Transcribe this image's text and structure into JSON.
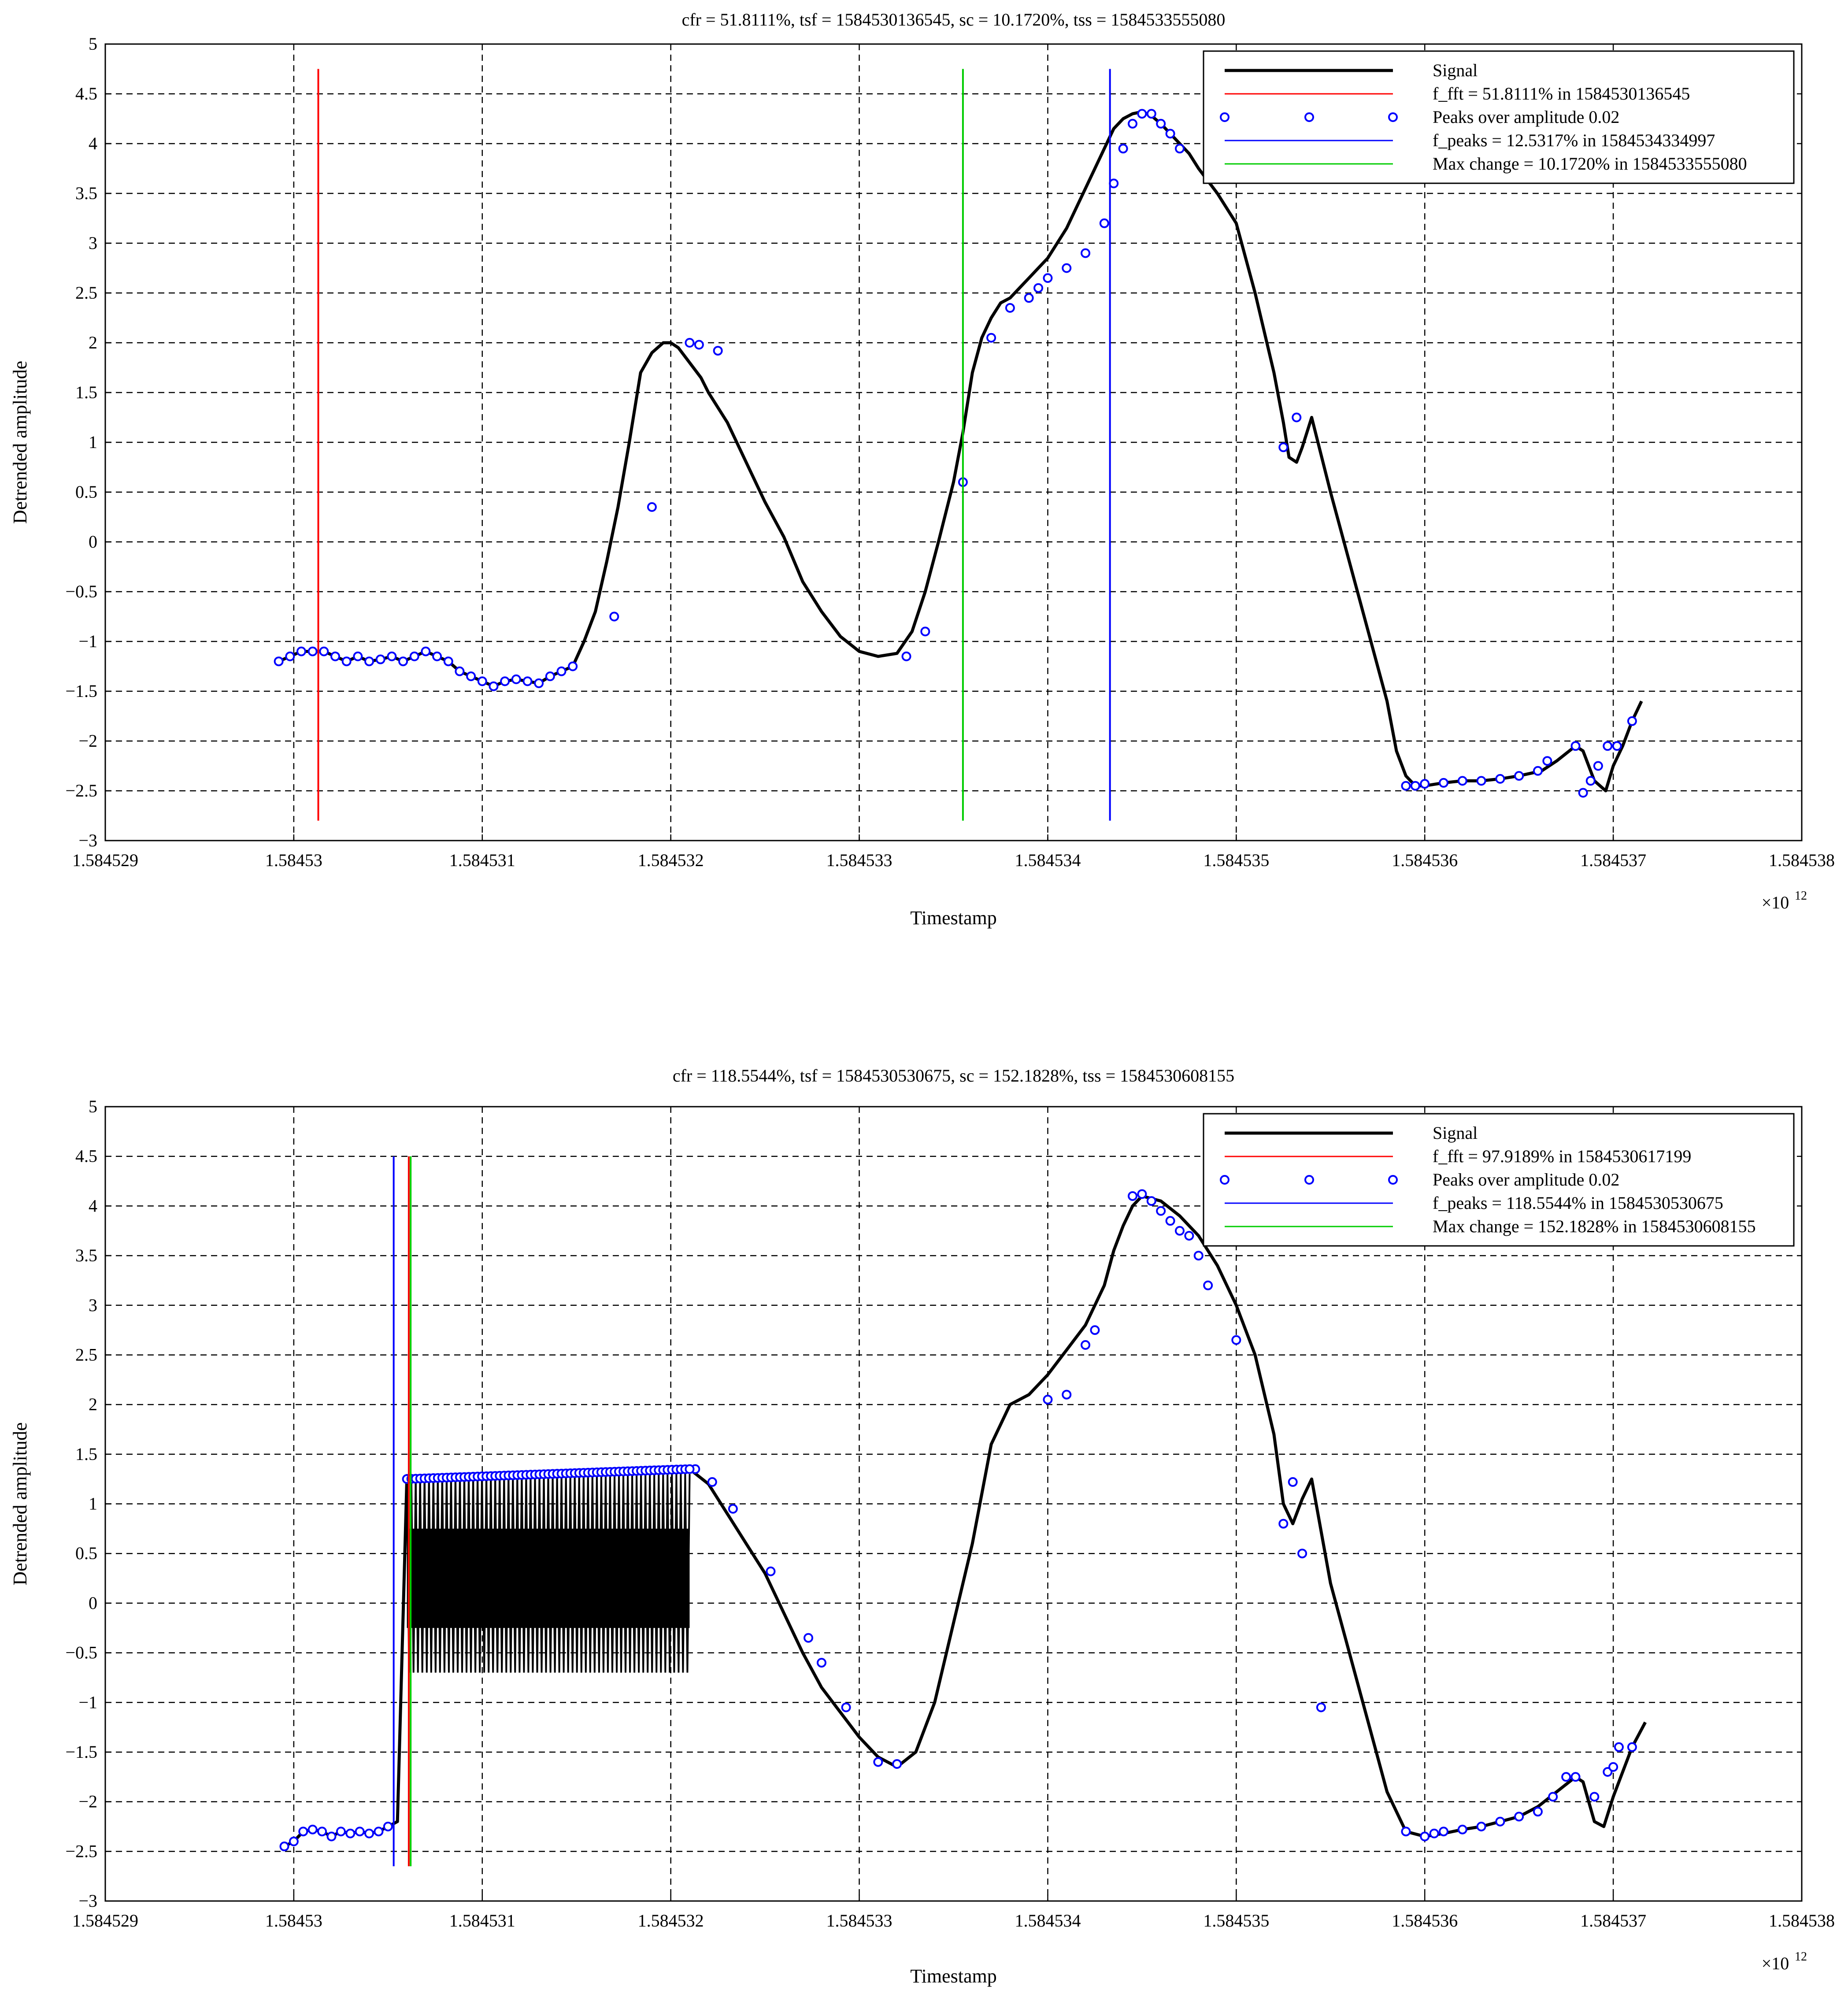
{
  "chart_data": [
    {
      "type": "line",
      "title": "cfr = 51.8111%, tsf = 1584530136545, sc = 10.1720%, tss = 1584533555080",
      "xlabel": "Timestamp",
      "ylabel": "Detrended amplitude",
      "x_multiplier": "×10",
      "x_multiplier_exp": "12",
      "xlim": [
        1.584529,
        1.584538
      ],
      "ylim": [
        -3,
        5
      ],
      "xticks": [
        "1.584529",
        "1.58453",
        "1.584531",
        "1.584532",
        "1.584533",
        "1.584534",
        "1.584535",
        "1.584536",
        "1.584537",
        "1.584538"
      ],
      "yticks": [
        "−3",
        "−2.5",
        "−2",
        "−1.5",
        "−1",
        "−0.5",
        "0",
        "0.5",
        "1",
        "1.5",
        "2",
        "2.5",
        "3",
        "3.5",
        "4",
        "4.5",
        "5"
      ],
      "grid": true,
      "legend_position": "top-right",
      "legend": [
        {
          "label": "Signal",
          "kind": "line",
          "color": "#000000"
        },
        {
          "label": "f_fft = 51.8111% in 1584530136545",
          "kind": "line",
          "color": "#ff0000"
        },
        {
          "label": "Peaks over amplitude 0.02",
          "kind": "marker",
          "color": "#0000ff"
        },
        {
          "label": "f_peaks = 12.5317% in 1584534334997",
          "kind": "line",
          "color": "#0000ff"
        },
        {
          "label": "Max change = 10.1720% in 1584533555080",
          "kind": "line",
          "color": "#00cc00"
        }
      ],
      "vlines": [
        {
          "x": 1.58453013,
          "y0": -2.8,
          "y1": 4.75,
          "color": "#ff0000"
        },
        {
          "x": 1.58453355,
          "y0": -2.8,
          "y1": 4.75,
          "color": "#00cc00"
        },
        {
          "x": 1.58453433,
          "y0": -2.8,
          "y1": 4.75,
          "color": "#0000ff"
        }
      ],
      "signal": {
        "x": [
          1.58452992,
          1.58452998,
          1.58453004,
          1.5845301,
          1.58453016,
          1.58453022,
          1.58453028,
          1.58453034,
          1.5845304,
          1.58453046,
          1.58453052,
          1.58453058,
          1.58453064,
          1.5845307,
          1.58453076,
          1.58453082,
          1.58453088,
          1.58453094,
          1.584531,
          1.58453106,
          1.58453112,
          1.58453118,
          1.58453124,
          1.5845313,
          1.58453136,
          1.58453142,
          1.58453148,
          1.58453154,
          1.5845316,
          1.58453166,
          1.58453172,
          1.58453178,
          1.58453184,
          1.5845319,
          1.58453196,
          1.584532,
          1.58453204,
          1.58453208,
          1.58453212,
          1.58453216,
          1.5845322,
          1.5845323,
          1.5845324,
          1.5845325,
          1.5845326,
          1.5845327,
          1.5845328,
          1.5845329,
          1.584533,
          1.5845331,
          1.5845332,
          1.58453328,
          1.58453335,
          1.58453342,
          1.5845335,
          1.58453355,
          1.5845336,
          1.58453365,
          1.5845337,
          1.58453375,
          1.5845338,
          1.58453385,
          1.5845339,
          1.58453395,
          1.584534,
          1.58453405,
          1.5845341,
          1.58453415,
          1.5845342,
          1.58453425,
          1.5845343,
          1.58453435,
          1.5845344,
          1.58453445,
          1.5845345,
          1.58453455,
          1.5845346,
          1.58453465,
          1.5845347,
          1.58453475,
          1.5845348,
          1.5845349,
          1.584535,
          1.5845351,
          1.5845352,
          1.58453525,
          1.58453528,
          1.58453532,
          1.58453535,
          1.5845354,
          1.5845355,
          1.5845356,
          1.5845357,
          1.5845358,
          1.58453585,
          1.5845359,
          1.58453595,
          1.584536,
          1.5845361,
          1.5845362,
          1.5845363,
          1.5845364,
          1.5845365,
          1.58453662,
          1.5845367,
          1.5845368,
          1.58453684,
          1.5845369,
          1.58453696,
          1.584537,
          1.58453705,
          1.5845371,
          1.58453715
        ],
        "y": [
          -1.2,
          -1.15,
          -1.1,
          -1.1,
          -1.1,
          -1.15,
          -1.2,
          -1.15,
          -1.2,
          -1.18,
          -1.15,
          -1.2,
          -1.15,
          -1.1,
          -1.15,
          -1.2,
          -1.3,
          -1.35,
          -1.4,
          -1.45,
          -1.4,
          -1.38,
          -1.4,
          -1.42,
          -1.35,
          -1.3,
          -1.25,
          -1.0,
          -0.7,
          -0.2,
          0.35,
          1.0,
          1.7,
          1.9,
          2.0,
          2.0,
          1.95,
          1.85,
          1.75,
          1.65,
          1.5,
          1.2,
          0.8,
          0.4,
          0.05,
          -0.4,
          -0.7,
          -0.95,
          -1.1,
          -1.15,
          -1.12,
          -0.9,
          -0.5,
          0.0,
          0.6,
          1.1,
          1.7,
          2.05,
          2.25,
          2.4,
          2.45,
          2.55,
          2.65,
          2.75,
          2.85,
          3.0,
          3.15,
          3.35,
          3.55,
          3.75,
          3.95,
          4.15,
          4.25,
          4.3,
          4.32,
          4.28,
          4.2,
          4.1,
          4.0,
          3.9,
          3.75,
          3.5,
          3.2,
          2.5,
          1.7,
          1.2,
          0.85,
          0.8,
          0.95,
          1.25,
          0.5,
          -0.2,
          -0.9,
          -1.6,
          -2.1,
          -2.35,
          -2.45,
          -2.45,
          -2.42,
          -2.4,
          -2.4,
          -2.38,
          -2.35,
          -2.3,
          -2.2,
          -2.05,
          -2.1,
          -2.4,
          -2.5,
          -2.25,
          -2.05,
          -1.8,
          -1.6
        ]
      },
      "peaks": {
        "x": [
          1.58452992,
          1.58452998,
          1.58453004,
          1.5845301,
          1.58453016,
          1.58453022,
          1.58453028,
          1.58453034,
          1.5845304,
          1.58453046,
          1.58453052,
          1.58453058,
          1.58453064,
          1.5845307,
          1.58453076,
          1.58453082,
          1.58453088,
          1.58453094,
          1.584531,
          1.58453106,
          1.58453112,
          1.58453118,
          1.58453124,
          1.5845313,
          1.58453136,
          1.58453142,
          1.58453148,
          1.5845317,
          1.5845319,
          1.5845321,
          1.58453215,
          1.58453225,
          1.58453325,
          1.58453335,
          1.58453355,
          1.5845337,
          1.5845338,
          1.5845339,
          1.58453395,
          1.584534,
          1.5845341,
          1.5845342,
          1.5845343,
          1.58453435,
          1.5845344,
          1.58453445,
          1.5845345,
          1.58453455,
          1.5845346,
          1.58453465,
          1.5845347,
          1.58453525,
          1.58453532,
          1.5845359,
          1.58453595,
          1.584536,
          1.5845361,
          1.5845362,
          1.5845363,
          1.5845364,
          1.5845365,
          1.5845366,
          1.58453665,
          1.5845368,
          1.58453684,
          1.58453688,
          1.58453692,
          1.58453697,
          1.58453702,
          1.5845371
        ],
        "y": [
          -1.2,
          -1.15,
          -1.1,
          -1.1,
          -1.1,
          -1.15,
          -1.2,
          -1.15,
          -1.2,
          -1.18,
          -1.15,
          -1.2,
          -1.15,
          -1.1,
          -1.15,
          -1.2,
          -1.3,
          -1.35,
          -1.4,
          -1.45,
          -1.4,
          -1.38,
          -1.4,
          -1.42,
          -1.35,
          -1.3,
          -1.25,
          -0.75,
          0.35,
          2.0,
          1.98,
          1.92,
          -1.15,
          -0.9,
          0.6,
          2.05,
          2.35,
          2.45,
          2.55,
          2.65,
          2.75,
          2.9,
          3.2,
          3.6,
          3.95,
          4.2,
          4.3,
          4.3,
          4.2,
          4.1,
          3.95,
          0.95,
          1.25,
          -2.45,
          -2.45,
          -2.43,
          -2.42,
          -2.4,
          -2.4,
          -2.38,
          -2.35,
          -2.3,
          -2.2,
          -2.05,
          -2.52,
          -2.4,
          -2.25,
          -2.05,
          -2.05,
          -1.8
        ]
      }
    },
    {
      "type": "line",
      "title": "cfr = 118.5544%, tsf = 1584530530675, sc = 152.1828%, tss = 1584530608155",
      "xlabel": "Timestamp",
      "ylabel": "Detrended amplitude",
      "x_multiplier": "×10",
      "x_multiplier_exp": "12",
      "xlim": [
        1.584529,
        1.584538
      ],
      "ylim": [
        -3,
        5
      ],
      "xticks": [
        "1.584529",
        "1.58453",
        "1.584531",
        "1.584532",
        "1.584533",
        "1.584534",
        "1.584535",
        "1.584536",
        "1.584537",
        "1.584538"
      ],
      "yticks": [
        "−3",
        "−2.5",
        "−2",
        "−1.5",
        "−1",
        "−0.5",
        "0",
        "0.5",
        "1",
        "1.5",
        "2",
        "2.5",
        "3",
        "3.5",
        "4",
        "4.5",
        "5"
      ],
      "grid": true,
      "legend_position": "top-right",
      "legend": [
        {
          "label": "Signal",
          "kind": "line",
          "color": "#000000"
        },
        {
          "label": "f_fft = 97.9189% in 1584530617199",
          "kind": "line",
          "color": "#ff0000"
        },
        {
          "label": "Peaks over amplitude 0.02",
          "kind": "marker",
          "color": "#0000ff"
        },
        {
          "label": "f_peaks = 118.5544% in 1584530530675",
          "kind": "line",
          "color": "#0000ff"
        },
        {
          "label": "Max change = 152.1828% in 1584530608155",
          "kind": "line",
          "color": "#00cc00"
        }
      ],
      "vlines": [
        {
          "x": 1.58453053,
          "y0": -2.65,
          "y1": 4.5,
          "color": "#0000ff"
        },
        {
          "x": 1.58453061,
          "y0": -2.65,
          "y1": 4.5,
          "color": "#ff0000"
        },
        {
          "x": 1.58453062,
          "y0": -2.65,
          "y1": 4.5,
          "color": "#00cc00"
        }
      ],
      "band": {
        "x0": 1.5845306,
        "x1": 1.5845321,
        "count": 64,
        "y_high": 1.3,
        "y_low": -0.7
      },
      "signal": {
        "x": [
          1.58452995,
          1.58453,
          1.58453005,
          1.5845301,
          1.58453015,
          1.5845302,
          1.58453025,
          1.5845303,
          1.58453035,
          1.5845304,
          1.58453045,
          1.5845305,
          1.58453055,
          1.5845306,
          1.5845321,
          1.5845322,
          1.5845323,
          1.5845324,
          1.5845325,
          1.5845326,
          1.5845327,
          1.5845328,
          1.5845329,
          1.584533,
          1.5845331,
          1.5845332,
          1.5845333,
          1.5845334,
          1.5845335,
          1.5845336,
          1.5845337,
          1.5845338,
          1.5845339,
          1.584534,
          1.5845341,
          1.5845342,
          1.5845343,
          1.58453435,
          1.5845344,
          1.58453445,
          1.5845345,
          1.5845346,
          1.5845347,
          1.5845348,
          1.5845349,
          1.584535,
          1.5845351,
          1.5845352,
          1.58453525,
          1.5845353,
          1.58453535,
          1.5845354,
          1.5845355,
          1.5845356,
          1.5845357,
          1.5845358,
          1.5845359,
          1.584536,
          1.5845361,
          1.5845362,
          1.5845363,
          1.5845364,
          1.5845365,
          1.5845366,
          1.5845367,
          1.5845368,
          1.58453684,
          1.5845369,
          1.58453695,
          1.584537,
          1.58453705,
          1.5845371,
          1.58453717
        ],
        "y": [
          -2.45,
          -2.4,
          -2.3,
          -2.28,
          -2.3,
          -2.35,
          -2.3,
          -2.32,
          -2.3,
          -2.32,
          -2.3,
          -2.25,
          -2.2,
          1.25,
          1.35,
          1.2,
          0.9,
          0.6,
          0.3,
          -0.1,
          -0.5,
          -0.85,
          -1.1,
          -1.35,
          -1.55,
          -1.65,
          -1.5,
          -1.0,
          -0.2,
          0.6,
          1.6,
          2.0,
          2.1,
          2.3,
          2.55,
          2.8,
          3.2,
          3.55,
          3.8,
          4.0,
          4.1,
          4.05,
          3.9,
          3.7,
          3.4,
          3.0,
          2.5,
          1.7,
          1.0,
          0.8,
          1.05,
          1.25,
          0.2,
          -0.5,
          -1.2,
          -1.9,
          -2.3,
          -2.35,
          -2.32,
          -2.28,
          -2.25,
          -2.2,
          -2.15,
          -2.05,
          -1.9,
          -1.75,
          -1.8,
          -2.2,
          -2.25,
          -1.95,
          -1.7,
          -1.45,
          -1.2
        ]
      },
      "peaks": {
        "x": [
          1.58452995,
          1.58453,
          1.58453005,
          1.5845301,
          1.58453015,
          1.5845302,
          1.58453025,
          1.5845303,
          1.58453035,
          1.5845304,
          1.58453045,
          1.5845305,
          1.58453213,
          1.58453222,
          1.58453233,
          1.58453253,
          1.58453273,
          1.5845328,
          1.58453293,
          1.5845331,
          1.5845332,
          1.584534,
          1.5845341,
          1.5845342,
          1.58453425,
          1.58453445,
          1.5845345,
          1.58453455,
          1.5845346,
          1.58453465,
          1.5845347,
          1.58453475,
          1.5845348,
          1.58453485,
          1.584535,
          1.58453525,
          1.5845353,
          1.58453535,
          1.58453545,
          1.5845359,
          1.584536,
          1.58453605,
          1.5845361,
          1.5845362,
          1.5845363,
          1.5845364,
          1.5845365,
          1.5845366,
          1.58453668,
          1.58453675,
          1.5845368,
          1.5845369,
          1.58453697,
          1.584537,
          1.58453703,
          1.5845371
        ],
        "y": [
          -2.45,
          -2.4,
          -2.3,
          -2.28,
          -2.3,
          -2.35,
          -2.3,
          -2.32,
          -2.3,
          -2.32,
          -2.3,
          -2.25,
          1.35,
          1.22,
          0.95,
          0.32,
          -0.35,
          -0.6,
          -1.05,
          -1.6,
          -1.62,
          2.05,
          2.1,
          2.6,
          2.75,
          4.1,
          4.12,
          4.05,
          3.95,
          3.85,
          3.75,
          3.7,
          3.5,
          3.2,
          2.65,
          0.8,
          1.22,
          0.5,
          -1.05,
          -2.3,
          -2.35,
          -2.32,
          -2.3,
          -2.28,
          -2.25,
          -2.2,
          -2.15,
          -2.1,
          -1.95,
          -1.75,
          -1.75,
          -1.95,
          -1.7,
          -1.65,
          -1.45,
          -1.45
        ]
      }
    }
  ]
}
